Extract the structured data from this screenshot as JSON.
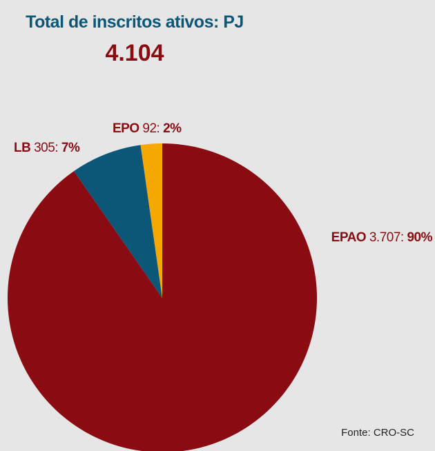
{
  "chart_data": {
    "type": "pie",
    "title": "Total de inscritos ativos: PJ",
    "subtitle": "4.104",
    "categories": [
      "EPAO",
      "LB",
      "EPO"
    ],
    "values": [
      3707,
      305,
      92
    ],
    "value_labels": [
      "3.707",
      "305",
      "92"
    ],
    "label_separator": ":",
    "percent_labels": [
      {
        "value": 90,
        "label": "90%"
      },
      {
        "value": 7,
        "label": "7%"
      },
      {
        "value": 2,
        "label": "2%"
      }
    ],
    "colors": [
      "#8a0c12",
      "#0c5677",
      "#f5a900"
    ],
    "source": "Fonte: CRO-SC"
  }
}
